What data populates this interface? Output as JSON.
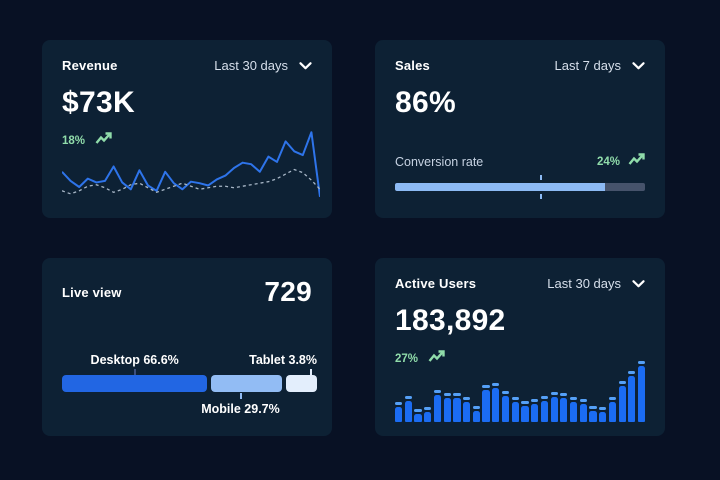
{
  "colors": {
    "page_bg": "#081124",
    "card_bg": "#0d2134",
    "text_primary": "#ffffff",
    "text_muted": "#d6dfeb",
    "positive_green": "#90dcaa",
    "line_solid": "#2e74ea",
    "line_dashed": "#a7b6c6",
    "bar_body": "#1b6cf2",
    "bar_cap": "#55a0f6",
    "progress_fill": "#8cbaf4",
    "progress_track": "#46536b"
  },
  "cards": {
    "revenue": {
      "title": "Revenue",
      "range_label": "Last 30 days",
      "value": "$73K",
      "delta": "18%",
      "chart_data": {
        "type": "line",
        "grid": false,
        "axes": "hidden",
        "y_range_pct_from_top": [
          0,
          100
        ],
        "series": [
          {
            "name": "current",
            "style": "solid",
            "color": "#2e74ea",
            "y_top_pct": [
              55,
              67,
              75,
              64,
              69,
              67,
              48,
              69,
              78,
              53,
              73,
              80,
              55,
              70,
              78,
              68,
              70,
              73,
              65,
              60,
              50,
              43,
              45,
              55,
              35,
              42,
              15,
              28,
              33,
              3,
              88
            ]
          },
          {
            "name": "previous",
            "style": "dashed",
            "color": "#a7b6c6",
            "y_top_pct": [
              80,
              84,
              80,
              74,
              72,
              76,
              82,
              78,
              72,
              70,
              76,
              82,
              78,
              74,
              70,
              74,
              78,
              76,
              74,
              74,
              76,
              74,
              72,
              70,
              68,
              64,
              58,
              52,
              56,
              66,
              78
            ]
          }
        ]
      }
    },
    "sales": {
      "title": "Sales",
      "range_label": "Last 7 days",
      "value": "86%",
      "metric_label": "Conversion rate",
      "delta": "24%",
      "progress": {
        "type": "progress-bar",
        "fill_percent": 84,
        "marker_percent": 58.5
      }
    },
    "live_view": {
      "title": "Live view",
      "value": "729",
      "chart_data": {
        "type": "stacked-bar",
        "segments": [
          {
            "name": "Desktop",
            "label": "Desktop 66.6%",
            "percent": 66.6,
            "label_position": "above",
            "color": "#2266e3",
            "display_grow": 57,
            "tick_pct": 28.5,
            "tick_color": "#3c4f7e"
          },
          {
            "name": "Mobile",
            "label": "Mobile 29.7%",
            "percent": 29.7,
            "label_position": "below",
            "color": "#92bcf4",
            "display_grow": 28,
            "tick_pct": 70,
            "tick_color": "#92bcf4"
          },
          {
            "name": "Tablet",
            "label": "Tablet 3.8%",
            "percent": 3.8,
            "label_position": "above",
            "color": "#e3eefc",
            "display_grow": 12,
            "tick_pct": 97.5,
            "tick_color": "#e3eefc"
          }
        ]
      }
    },
    "active_users": {
      "title": "Active Users",
      "range_label": "Last 30 days",
      "value": "183,892",
      "delta": "27%",
      "chart_data": {
        "type": "bar",
        "axes": "hidden",
        "values_pct": [
          26,
          38,
          14,
          18,
          48,
          42,
          43,
          36,
          19,
          57,
          61,
          47,
          36,
          28,
          32,
          37,
          44,
          42,
          36,
          33,
          19,
          17,
          36,
          64,
          83,
          100
        ]
      }
    }
  }
}
